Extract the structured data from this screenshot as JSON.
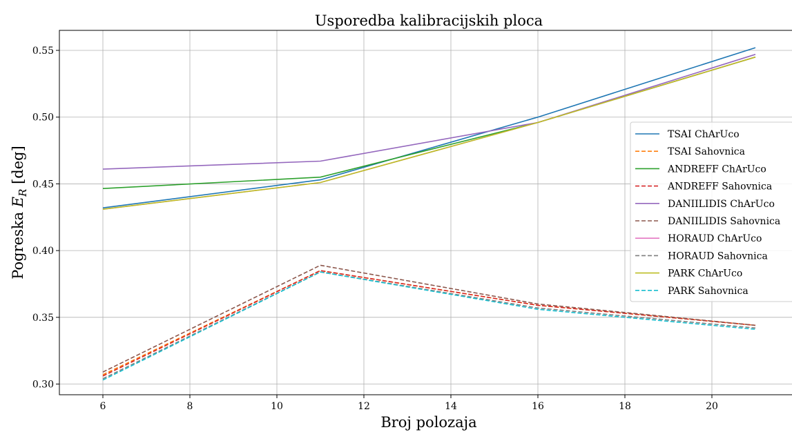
{
  "chart_data": {
    "type": "line",
    "title": "Usporedba kalibracijskih ploca",
    "xlabel": "Broj polozaja",
    "ylabel_prefix": "Pogreska ",
    "ylabel_symbol": "E",
    "ylabel_subscript": "R",
    "ylabel_suffix": " [deg]",
    "x": [
      6,
      11,
      16,
      21
    ],
    "xlim": [
      5,
      22
    ],
    "ylim": [
      0.292,
      0.565
    ],
    "xticks": [
      6,
      8,
      10,
      12,
      14,
      16,
      18,
      20
    ],
    "yticks": [
      0.3,
      0.35,
      0.4,
      0.45,
      0.5,
      0.55
    ],
    "grid": true,
    "legend_position": "right",
    "series": [
      {
        "name": "TSAI ChArUco",
        "values": [
          0.432,
          0.453,
          0.5,
          0.552
        ],
        "color": "#1f77b4",
        "dash": "solid"
      },
      {
        "name": "TSAI Sahovnica",
        "values": [
          0.307,
          0.385,
          0.359,
          0.344
        ],
        "color": "#ff7f0e",
        "dash": "dashed"
      },
      {
        "name": "ANDREFF ChArUco",
        "values": [
          0.4465,
          0.455,
          0.496,
          0.545
        ],
        "color": "#2ca02c",
        "dash": "solid"
      },
      {
        "name": "ANDREFF Sahovnica",
        "values": [
          0.306,
          0.385,
          0.359,
          0.344
        ],
        "color": "#d62728",
        "dash": "dashed"
      },
      {
        "name": "DANIILIDIS ChArUco",
        "values": [
          0.461,
          0.467,
          0.496,
          0.547
        ],
        "color": "#9467bd",
        "dash": "solid"
      },
      {
        "name": "DANIILIDIS Sahovnica",
        "values": [
          0.309,
          0.389,
          0.36,
          0.344
        ],
        "color": "#8c564b",
        "dash": "dashed"
      },
      {
        "name": "HORAUD ChArUco",
        "values": [
          0.431,
          0.451,
          0.496,
          0.545
        ],
        "color": "#e377c2",
        "dash": "solid"
      },
      {
        "name": "HORAUD Sahovnica",
        "values": [
          0.304,
          0.384,
          0.357,
          0.342
        ],
        "color": "#7f7f7f",
        "dash": "dashed"
      },
      {
        "name": "PARK ChArUco",
        "values": [
          0.431,
          0.451,
          0.496,
          0.545
        ],
        "color": "#bcbd22",
        "dash": "solid"
      },
      {
        "name": "PARK Sahovnica",
        "values": [
          0.303,
          0.384,
          0.356,
          0.341
        ],
        "color": "#17becf",
        "dash": "dashed"
      }
    ]
  }
}
